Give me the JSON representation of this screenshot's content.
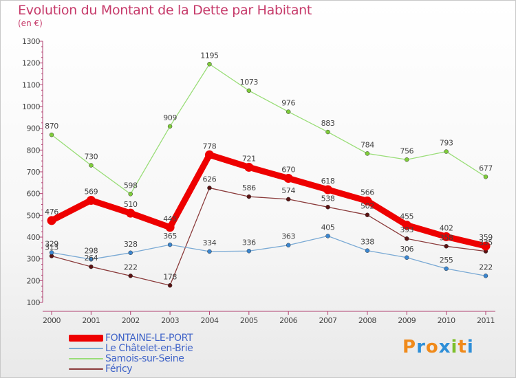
{
  "header": {
    "title": "Evolution du Montant de la Dette par Habitant",
    "subtitle": "(en €)"
  },
  "logo": {
    "text": "Proxiti",
    "letters": [
      "P",
      "r",
      "o",
      "x",
      "i",
      "t",
      "i"
    ],
    "colors": [
      "#f08a1a",
      "#2e8fd8",
      "#f08a1a",
      "#2e8fd8",
      "#7dbf2a",
      "#f08a1a",
      "#2e8fd8"
    ]
  },
  "chart_data": {
    "type": "line",
    "categories": [
      "2000",
      "2001",
      "2002",
      "2003",
      "2004",
      "2005",
      "2006",
      "2007",
      "2008",
      "2009",
      "2010",
      "2011"
    ],
    "ylim": [
      100,
      1300
    ],
    "yticks": [
      "100",
      "200",
      "300",
      "400",
      "500",
      "600",
      "700",
      "800",
      "900",
      "1000",
      "1100",
      "1200",
      "1300"
    ],
    "grid": false,
    "legend_position": "bottom-left",
    "series": [
      {
        "name": "FONTAINE-LE-PORT",
        "color": "#ee0000",
        "marker": "#ee0000",
        "thick": true,
        "values": [
          476,
          569,
          510,
          445,
          778,
          721,
          670,
          618,
          566,
          455,
          402,
          359
        ],
        "labels": [
          "476",
          "569",
          "510",
          "445",
          "778",
          "721",
          "670",
          "618",
          "566",
          "455",
          "402",
          "359"
        ]
      },
      {
        "name": "Le Châtelet-en-Brie",
        "color": "#79a9d4",
        "marker": "#3b86cf",
        "thick": false,
        "values": [
          329,
          298,
          328,
          365,
          334,
          336,
          363,
          405,
          338,
          306,
          255,
          222
        ],
        "labels": [
          "329",
          "298",
          "328",
          "365",
          "334",
          "336",
          "363",
          "405",
          "338",
          "306",
          "255",
          "222"
        ]
      },
      {
        "name": "Samois-sur-Seine",
        "color": "#99dd77",
        "marker": "#7fcc3a",
        "thick": false,
        "values": [
          870,
          730,
          598,
          909,
          1195,
          1073,
          976,
          883,
          784,
          756,
          793,
          677
        ],
        "labels": [
          "870",
          "730",
          "598",
          "909",
          "1195",
          "1073",
          "976",
          "883",
          "784",
          "756",
          "793",
          "677"
        ]
      },
      {
        "name": "Féricy",
        "color": "#8a3a3a",
        "marker": "#5a1212",
        "thick": false,
        "values": [
          313,
          264,
          222,
          178,
          626,
          586,
          574,
          538,
          502,
          393,
          358,
          335
        ],
        "labels": [
          "313",
          "264",
          "222",
          "178",
          "626",
          "586",
          "574",
          "538",
          "502",
          "393",
          "358",
          "335"
        ]
      }
    ]
  }
}
